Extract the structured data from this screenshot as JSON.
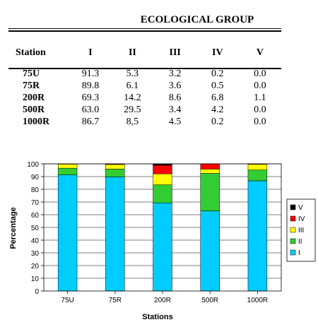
{
  "table": {
    "group_title": "ECOLOGICAL GROUP",
    "headers": [
      "Station",
      "I",
      "II",
      "III",
      "IV",
      "V"
    ],
    "rows": [
      [
        "75U",
        "91.3",
        "5.3",
        "3.2",
        "0.2",
        "0.0"
      ],
      [
        "75R",
        "89.8",
        "6.1",
        "3.6",
        "0.5",
        "0.0"
      ],
      [
        "200R",
        "69.3",
        "14.2",
        "8.6",
        "6.8",
        "1.1"
      ],
      [
        "500R",
        "63.0",
        "29.5",
        "3.4",
        "4.2",
        "0.0"
      ],
      [
        "1000R",
        "86.7",
        "8,5",
        "4.5",
        "0.2",
        "0.0"
      ]
    ]
  },
  "chart_data": {
    "type": "bar",
    "stacked": true,
    "categories": [
      "75U",
      "75R",
      "200R",
      "500R",
      "1000R"
    ],
    "series": [
      {
        "name": "I",
        "color": "#00ccff",
        "values": [
          91.3,
          89.8,
          69.3,
          63.0,
          86.7
        ]
      },
      {
        "name": "II",
        "color": "#33cc33",
        "values": [
          5.3,
          6.1,
          14.2,
          29.5,
          8.5
        ]
      },
      {
        "name": "III",
        "color": "#ffff00",
        "values": [
          3.2,
          3.6,
          8.6,
          3.4,
          4.5
        ]
      },
      {
        "name": "IV",
        "color": "#ff0000",
        "values": [
          0.2,
          0.5,
          6.8,
          4.2,
          0.2
        ]
      },
      {
        "name": "V",
        "color": "#000000",
        "values": [
          0.0,
          0.0,
          1.1,
          0.0,
          0.0
        ]
      }
    ],
    "xlabel": "Stations",
    "ylabel": "Percentage",
    "ylim": [
      0,
      100
    ],
    "yticks": [
      0,
      10,
      20,
      30,
      40,
      50,
      60,
      70,
      80,
      90,
      100
    ],
    "grid": true,
    "legend_position": "right"
  }
}
